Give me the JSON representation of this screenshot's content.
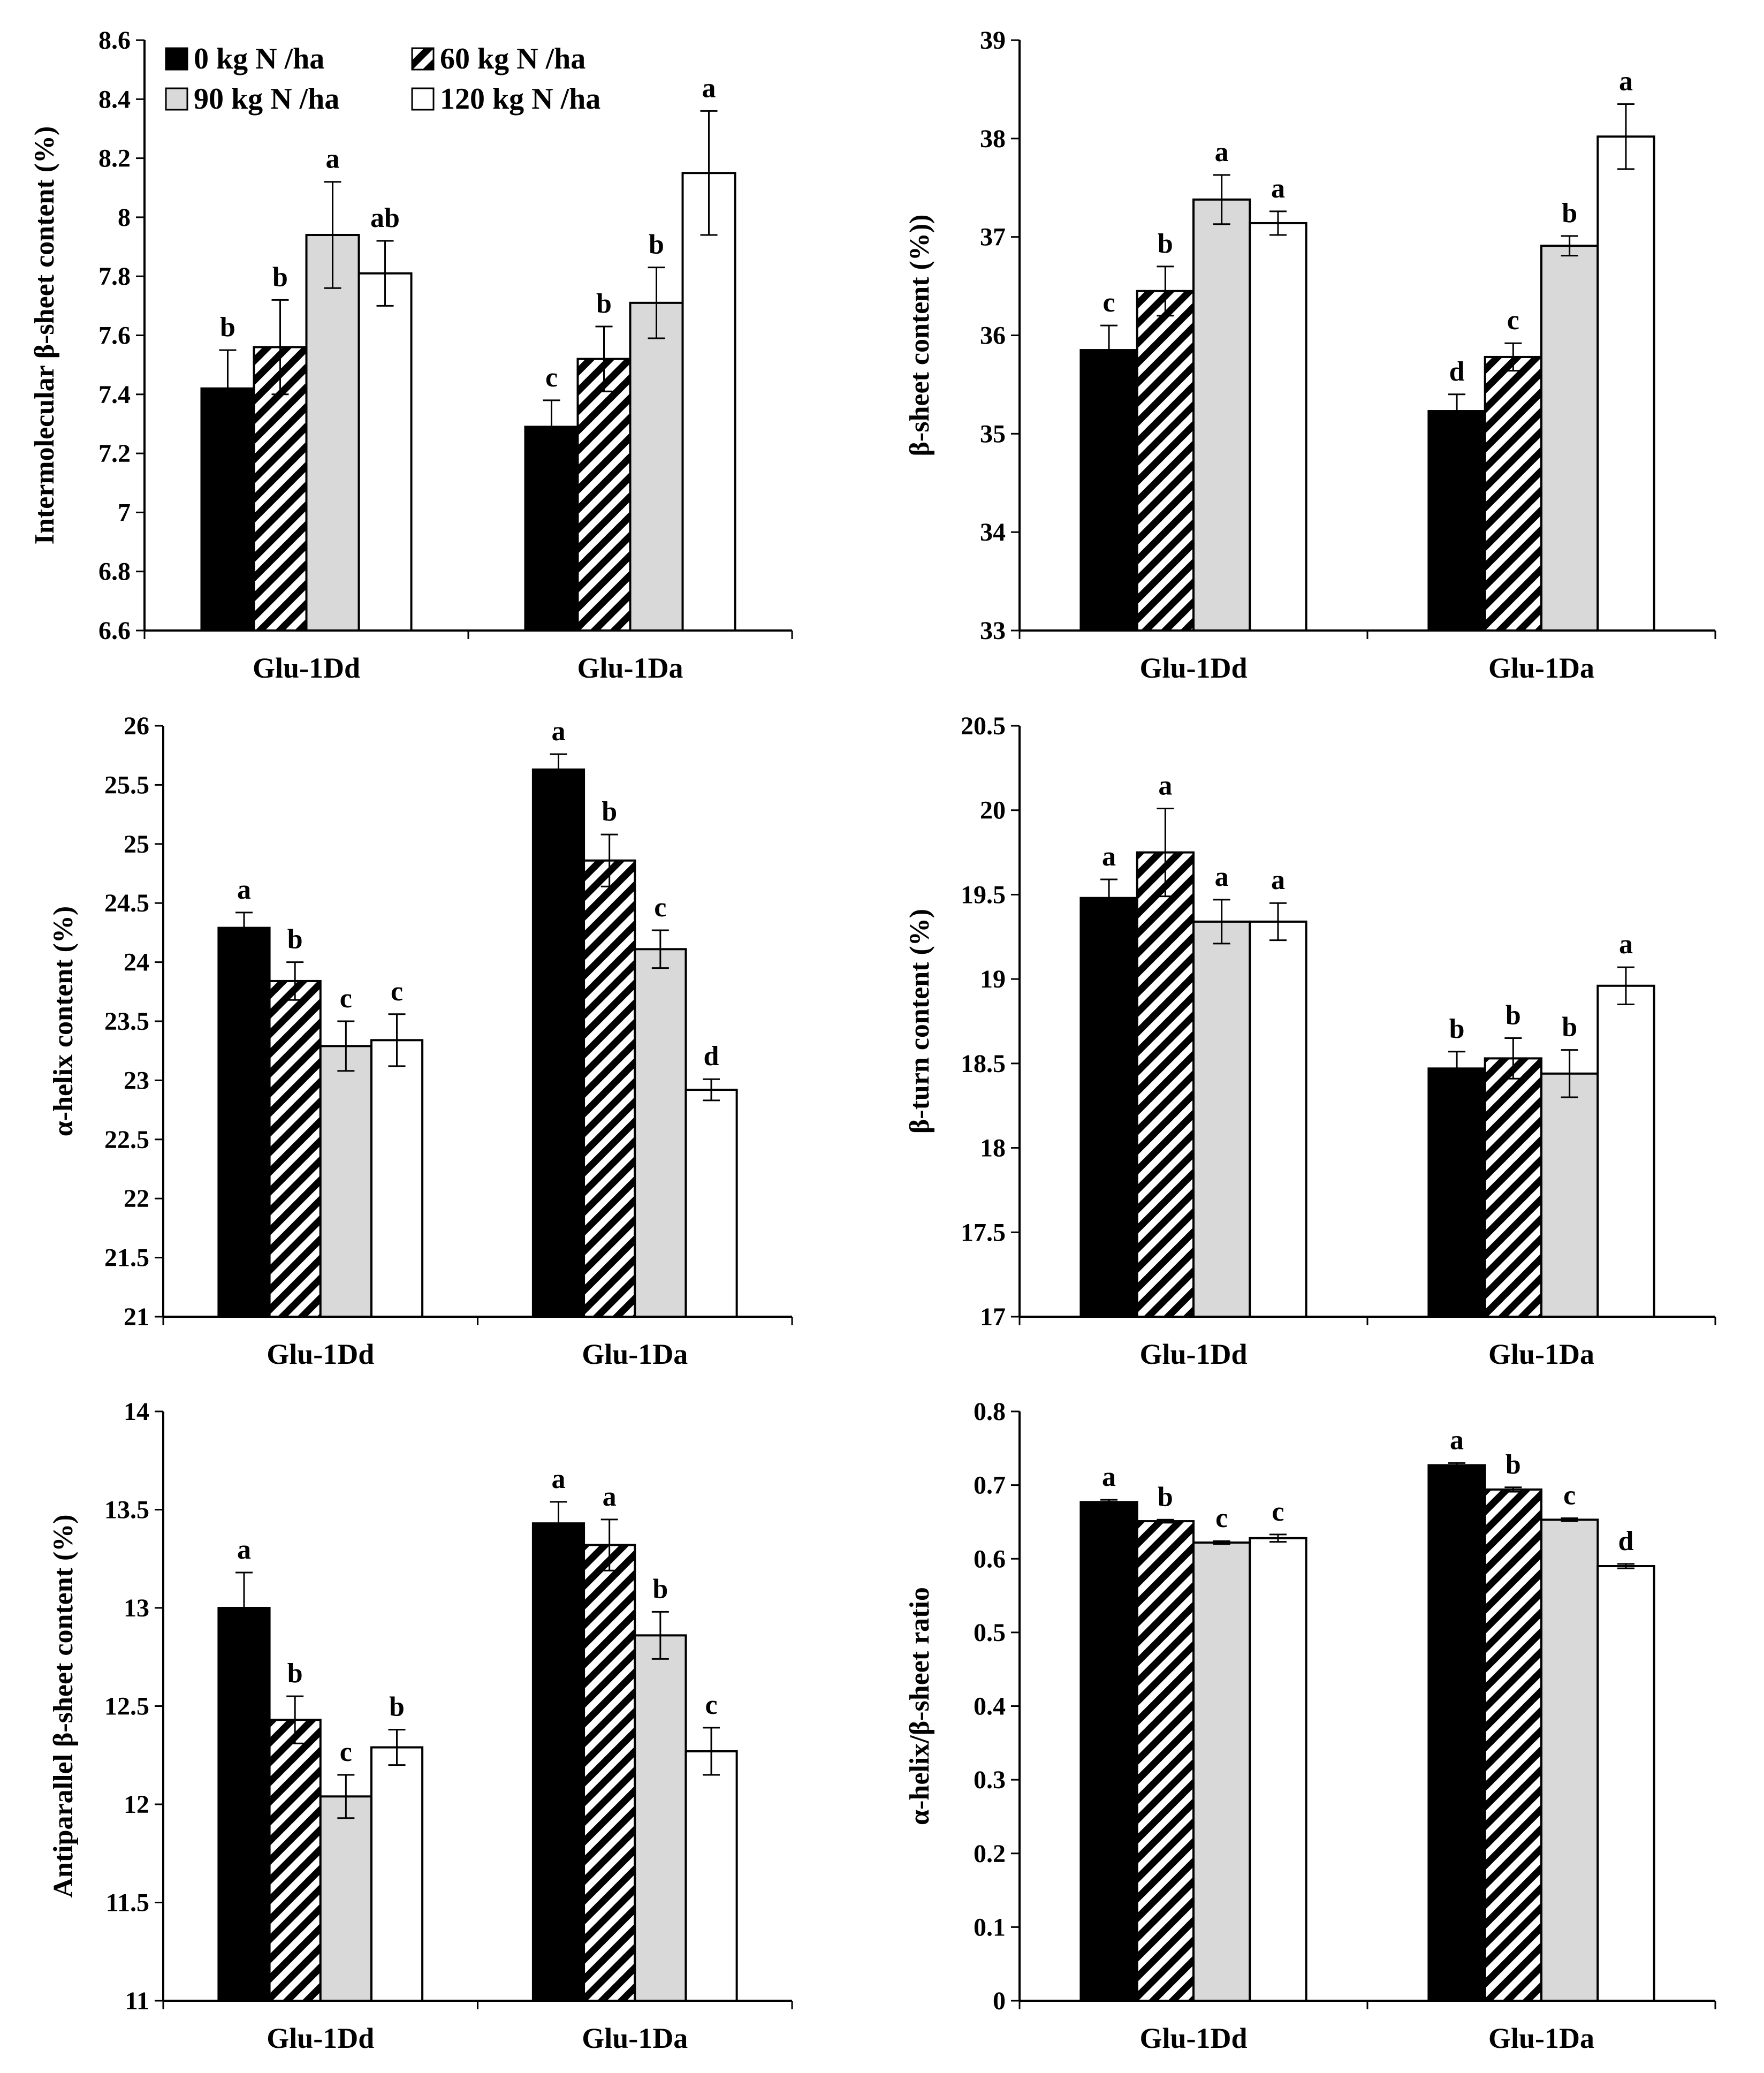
{
  "legend": [
    {
      "label": "0 kg N /ha",
      "fill": "black"
    },
    {
      "label": "60 kg N /ha",
      "fill": "hatch"
    },
    {
      "label": "90 kg N /ha",
      "fill": "grey"
    },
    {
      "label": "120 kg N /ha",
      "fill": "white"
    }
  ],
  "colors": {
    "black": "#000000",
    "grey": "#d9d9d9",
    "white": "#ffffff",
    "hatch": "#000000"
  },
  "chart_data": [
    {
      "type": "bar",
      "ylabel": "Intermolecular β-sheet content (%)",
      "ylim": [
        6.6,
        8.6
      ],
      "ticks": [
        "6.6",
        "6.8",
        "7",
        "7.2",
        "7.4",
        "7.6",
        "7.8",
        "8",
        "8.2",
        "8.4",
        "8.6"
      ],
      "categories": [
        "Glu-1Dd",
        "Glu-1Da"
      ],
      "series": [
        {
          "name": "0 kg N /ha",
          "values": [
            7.42,
            7.29
          ],
          "errors": [
            0.13,
            0.09
          ],
          "labels": [
            "b",
            "c"
          ]
        },
        {
          "name": "60 kg N /ha",
          "values": [
            7.56,
            7.52
          ],
          "errors": [
            0.16,
            0.11
          ],
          "labels": [
            "b",
            "b"
          ]
        },
        {
          "name": "90 kg N /ha",
          "values": [
            7.94,
            7.71
          ],
          "errors": [
            0.18,
            0.12
          ],
          "labels": [
            "a",
            "b"
          ]
        },
        {
          "name": "120 kg N /ha",
          "values": [
            7.81,
            8.15
          ],
          "errors": [
            0.11,
            0.21
          ],
          "labels": [
            "ab",
            "a"
          ]
        }
      ]
    },
    {
      "type": "bar",
      "ylabel": "β-sheet content (%))",
      "ylim": [
        33,
        39
      ],
      "ticks": [
        "33",
        "34",
        "35",
        "36",
        "37",
        "38",
        "39"
      ],
      "categories": [
        "Glu-1Dd",
        "Glu-1Da"
      ],
      "series": [
        {
          "name": "0 kg N /ha",
          "values": [
            35.85,
            35.23
          ],
          "errors": [
            0.25,
            0.17
          ],
          "labels": [
            "c",
            "d"
          ]
        },
        {
          "name": "60 kg N /ha",
          "values": [
            36.45,
            35.78
          ],
          "errors": [
            0.25,
            0.14
          ],
          "labels": [
            "b",
            "c"
          ]
        },
        {
          "name": "90 kg N /ha",
          "values": [
            37.38,
            36.91
          ],
          "errors": [
            0.25,
            0.1
          ],
          "labels": [
            "a",
            "b"
          ]
        },
        {
          "name": "120 kg N /ha",
          "values": [
            37.14,
            38.02
          ],
          "errors": [
            0.12,
            0.33
          ],
          "labels": [
            "a",
            "a"
          ]
        }
      ]
    },
    {
      "type": "bar",
      "ylabel": "α-helix content (%)",
      "ylim": [
        21,
        26
      ],
      "ticks": [
        "21",
        "21.5",
        "22",
        "22.5",
        "23",
        "23.5",
        "24",
        "24.5",
        "25",
        "25.5",
        "26"
      ],
      "categories": [
        "Glu-1Dd",
        "Glu-1Da"
      ],
      "series": [
        {
          "name": "0 kg N /ha",
          "values": [
            24.29,
            25.63
          ],
          "errors": [
            0.13,
            0.13
          ],
          "labels": [
            "a",
            "a"
          ]
        },
        {
          "name": "60 kg N /ha",
          "values": [
            23.84,
            24.86
          ],
          "errors": [
            0.16,
            0.22
          ],
          "labels": [
            "b",
            "b"
          ]
        },
        {
          "name": "90 kg N /ha",
          "values": [
            23.29,
            24.11
          ],
          "errors": [
            0.21,
            0.16
          ],
          "labels": [
            "c",
            "c"
          ]
        },
        {
          "name": "120 kg N /ha",
          "values": [
            23.34,
            22.92
          ],
          "errors": [
            0.22,
            0.09
          ],
          "labels": [
            "c",
            "d"
          ]
        }
      ]
    },
    {
      "type": "bar",
      "ylabel": "β-turn content (%)",
      "ylim": [
        17,
        20.5
      ],
      "ticks": [
        "17",
        "17.5",
        "18",
        "18.5",
        "19",
        "19.5",
        "20",
        "20.5"
      ],
      "categories": [
        "Glu-1Dd",
        "Glu-1Da"
      ],
      "series": [
        {
          "name": "0 kg N /ha",
          "values": [
            19.48,
            18.47
          ],
          "errors": [
            0.11,
            0.1
          ],
          "labels": [
            "a",
            "b"
          ]
        },
        {
          "name": "60 kg N /ha",
          "values": [
            19.75,
            18.53
          ],
          "errors": [
            0.26,
            0.12
          ],
          "labels": [
            "a",
            "b"
          ]
        },
        {
          "name": "90 kg N /ha",
          "values": [
            19.34,
            18.44
          ],
          "errors": [
            0.13,
            0.14
          ],
          "labels": [
            "a",
            "b"
          ]
        },
        {
          "name": "120 kg N /ha",
          "values": [
            19.34,
            18.96
          ],
          "errors": [
            0.11,
            0.11
          ],
          "labels": [
            "a",
            "a"
          ]
        }
      ]
    },
    {
      "type": "bar",
      "ylabel": "Antiparallel β-sheet content (%)",
      "ylim": [
        11,
        14
      ],
      "ticks": [
        "11",
        "11.5",
        "12",
        "12.5",
        "13",
        "13.5",
        "14"
      ],
      "categories": [
        "Glu-1Dd",
        "Glu-1Da"
      ],
      "series": [
        {
          "name": "0 kg N /ha",
          "values": [
            13.0,
            13.43
          ],
          "errors": [
            0.18,
            0.11
          ],
          "labels": [
            "a",
            "a"
          ]
        },
        {
          "name": "60 kg N /ha",
          "values": [
            12.43,
            13.32
          ],
          "errors": [
            0.12,
            0.13
          ],
          "labels": [
            "b",
            "a"
          ]
        },
        {
          "name": "90 kg N /ha",
          "values": [
            12.04,
            12.86
          ],
          "errors": [
            0.11,
            0.12
          ],
          "labels": [
            "c",
            "b"
          ]
        },
        {
          "name": "120 kg N /ha",
          "values": [
            12.29,
            12.27
          ],
          "errors": [
            0.09,
            0.12
          ],
          "labels": [
            "b",
            "c"
          ]
        }
      ]
    },
    {
      "type": "bar",
      "ylabel": "α-helix/β-sheet ratio",
      "ylim": [
        0,
        0.8
      ],
      "ticks": [
        "0",
        "0.1",
        "0.2",
        "0.3",
        "0.4",
        "0.5",
        "0.6",
        "0.7",
        "0.8"
      ],
      "categories": [
        "Glu-1Dd",
        "Glu-1Da"
      ],
      "series": [
        {
          "name": "0 kg N /ha",
          "values": [
            0.677,
            0.727
          ],
          "errors": [
            0.003,
            0.003
          ],
          "labels": [
            "a",
            "a"
          ]
        },
        {
          "name": "60 kg N /ha",
          "values": [
            0.651,
            0.694
          ],
          "errors": [
            0.002,
            0.003
          ],
          "labels": [
            "b",
            "b"
          ]
        },
        {
          "name": "90 kg N /ha",
          "values": [
            0.622,
            0.653
          ],
          "errors": [
            0.002,
            0.002
          ],
          "labels": [
            "c",
            "c"
          ]
        },
        {
          "name": "120 kg N /ha",
          "values": [
            0.628,
            0.59
          ],
          "errors": [
            0.005,
            0.003
          ],
          "labels": [
            "c",
            "d"
          ]
        }
      ]
    }
  ]
}
